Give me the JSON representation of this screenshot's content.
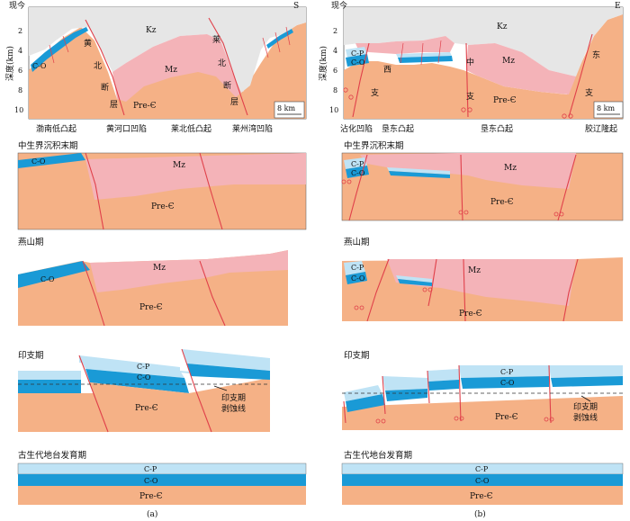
{
  "panel_a": {
    "caption": "(a)",
    "top_left": "现今",
    "direction": "S",
    "depth_axis": {
      "label": "深度(km)",
      "ticks": [
        "2",
        "4",
        "6",
        "8",
        "10"
      ]
    },
    "scale_bar": "8 km",
    "units_present": [
      "Kz",
      "Mz",
      "Pre-Є",
      "C-O"
    ],
    "fault_labels": {
      "huangbei": [
        "黄",
        "北",
        "断",
        "层"
      ],
      "laibei": [
        "莱",
        "北",
        "断",
        "层"
      ]
    },
    "regions": [
      "渤南低凸起",
      "黄河口凹陷",
      "莱北低凸起",
      "莱州湾凹陷"
    ],
    "stages": [
      {
        "title": "中生界沉积末期",
        "units": [
          "C-O",
          "Mz",
          "Pre-Є"
        ]
      },
      {
        "title": "燕山期",
        "units": [
          "C-O",
          "Mz",
          "Pre-Є"
        ]
      },
      {
        "title": "印支期",
        "units": [
          "C-P",
          "C-O",
          "Pre-Є"
        ],
        "erosion_line": [
          "印支期",
          "剥蚀线"
        ]
      },
      {
        "title": "古生代地台发育期",
        "units": [
          "C-P",
          "C-O",
          "Pre-Є"
        ]
      }
    ]
  },
  "panel_b": {
    "caption": "(b)",
    "top_left": "现今",
    "direction": "E",
    "depth_axis": {
      "label": "深度(km)",
      "ticks": [
        "2",
        "4",
        "6",
        "8",
        "10"
      ]
    },
    "scale_bar": "8 km",
    "units_present": [
      "Kz",
      "Mz",
      "Pre-Є",
      "C-P",
      "C-O"
    ],
    "fault_labels": {
      "xi": [
        "西",
        "支"
      ],
      "zhong": [
        "中",
        "支"
      ],
      "dong": [
        "东",
        "支"
      ]
    },
    "regions": [
      "沾化凹陷",
      "垦东凸起",
      "垦东凸起",
      "胶辽隆起"
    ],
    "stages": [
      {
        "title": "中生界沉积末期",
        "units": [
          "C-P",
          "C-O",
          "Mz",
          "Pre-Є"
        ]
      },
      {
        "title": "燕山期",
        "units": [
          "C-P",
          "C-O",
          "Mz",
          "Pre-Є"
        ]
      },
      {
        "title": "印支期",
        "units": [
          "C-P",
          "C-O",
          "Pre-Є"
        ],
        "erosion_line": [
          "印支期",
          "剥蚀线"
        ]
      },
      {
        "title": "古生代地台发育期",
        "units": [
          "C-P",
          "C-O",
          "Pre-Є"
        ]
      }
    ]
  }
}
